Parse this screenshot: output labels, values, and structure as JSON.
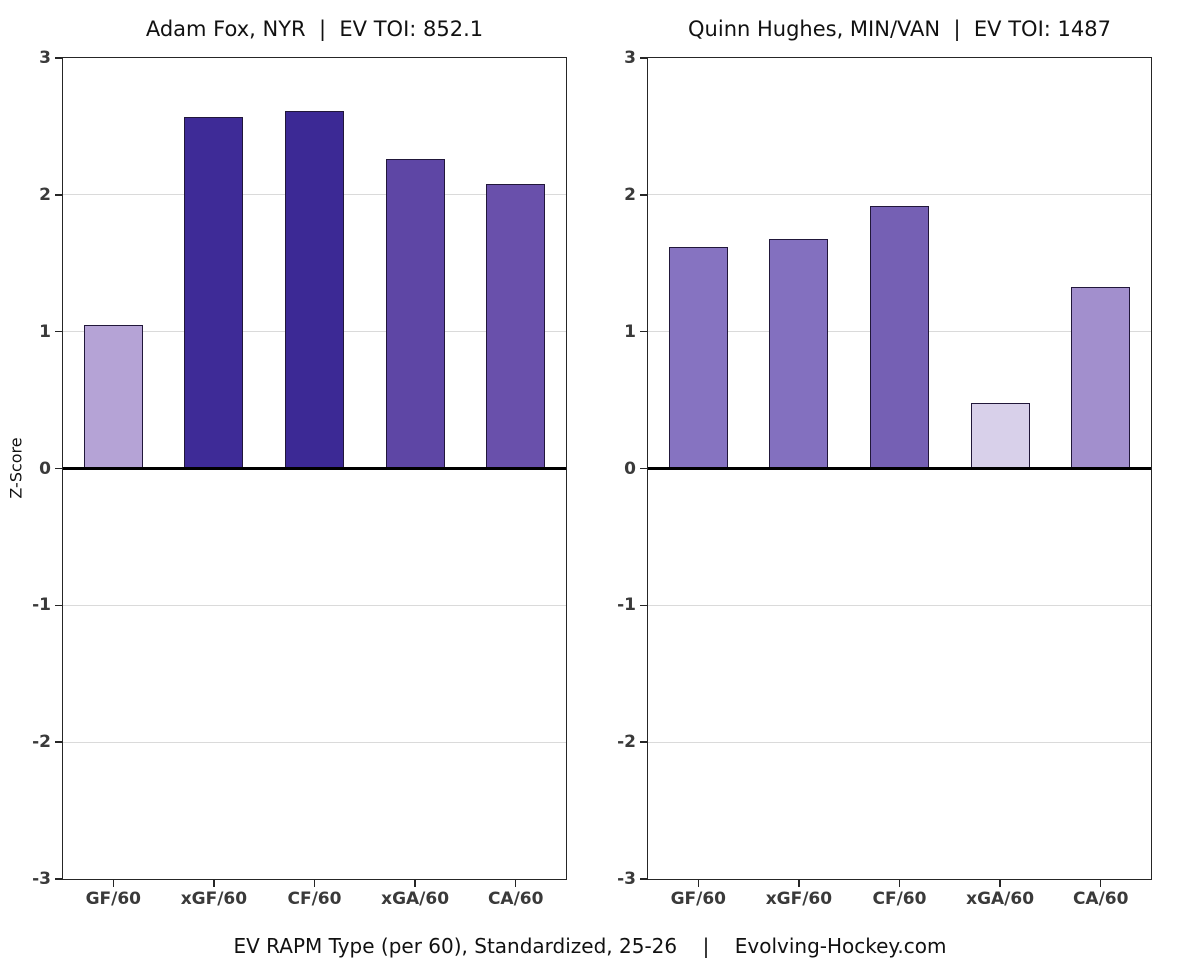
{
  "figure": {
    "ylabel": "Z-Score",
    "caption": "EV RAPM Type (per 60), Standardized, 25-26    |    Evolving-Hockey.com",
    "colors": {
      "frame": "#262626",
      "grid": "#dadada",
      "zero_line": "#000000",
      "tick_label": "#3a3a3a",
      "text": "#111111",
      "bar_edge": "#21173a",
      "background": "#ffffff"
    }
  },
  "chart_data": [
    {
      "type": "bar",
      "title": "Adam Fox, NYR  |  EV TOI: 852.1",
      "player": "Adam Fox",
      "team": "NYR",
      "ev_toi": 852.1,
      "categories": [
        "GF/60",
        "xGF/60",
        "CF/60",
        "xGA/60",
        "CA/60"
      ],
      "values": [
        1.05,
        2.57,
        2.61,
        2.26,
        2.08
      ],
      "bar_colors": [
        "#b5a3d6",
        "#3e2b97",
        "#3c2995",
        "#5e46a5",
        "#6950ab"
      ],
      "xlabel": "",
      "ylabel": "Z-Score",
      "ylim": [
        -3,
        3
      ],
      "yticks": [
        3,
        2,
        1,
        0,
        -1,
        -2,
        -3
      ],
      "gridlines": [
        2,
        1,
        -1,
        -2
      ],
      "grid": true,
      "legend": "none"
    },
    {
      "type": "bar",
      "title": "Quinn Hughes, MIN/VAN  |  EV TOI: 1487",
      "player": "Quinn Hughes",
      "team": "MIN/VAN",
      "ev_toi": 1487,
      "categories": [
        "GF/60",
        "xGF/60",
        "CF/60",
        "xGA/60",
        "CA/60"
      ],
      "values": [
        1.62,
        1.68,
        1.92,
        0.48,
        1.33
      ],
      "bar_colors": [
        "#8673c1",
        "#8370bf",
        "#7560b4",
        "#d8d0ea",
        "#a28fcd"
      ],
      "xlabel": "",
      "ylabel": "",
      "ylim": [
        -3,
        3
      ],
      "yticks": [
        3,
        2,
        1,
        0,
        -1,
        -2,
        -3
      ],
      "gridlines": [
        2,
        1,
        -1,
        -2
      ],
      "grid": true,
      "legend": "none"
    }
  ]
}
